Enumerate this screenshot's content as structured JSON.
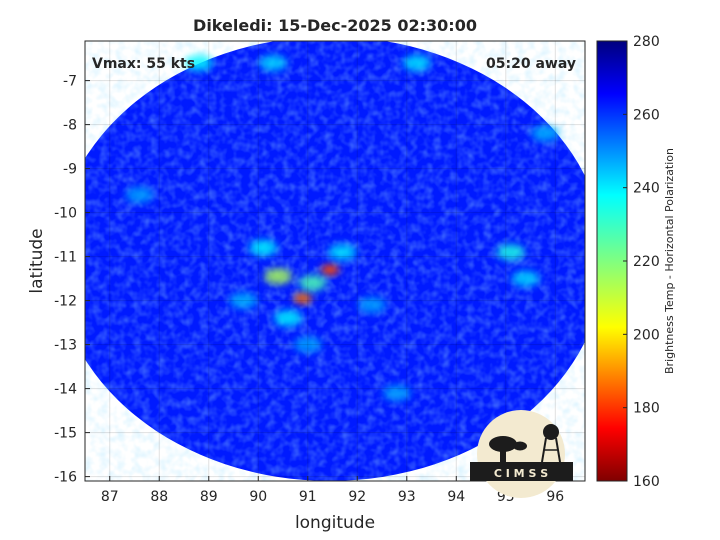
{
  "chart_data": {
    "type": "heatmap",
    "title": "Dikeledi: 15-Dec-2025 02:30:00",
    "xlabel": "longitude",
    "ylabel": "latitude",
    "xlim": [
      86.5,
      96.6
    ],
    "ylim": [
      -16.1,
      -6.1
    ],
    "x_ticks": [
      87,
      88,
      89,
      90,
      91,
      92,
      93,
      94,
      95,
      96
    ],
    "y_ticks": [
      -7,
      -8,
      -9,
      -10,
      -11,
      -12,
      -13,
      -14,
      -15,
      -16
    ],
    "grid": true,
    "annotations": {
      "vmax": "Vmax: 55 kts",
      "away": "05:20 away"
    },
    "swath": {
      "center_lon": 91.45,
      "center_lat": -11.05,
      "radius_lon": 5.55,
      "radius_lat": 5.05
    },
    "background_value": 262,
    "features": [
      {
        "lon": 90.9,
        "lat": -11.95,
        "value": 188
      },
      {
        "lon": 91.45,
        "lat": -11.3,
        "value": 184
      },
      {
        "lon": 90.4,
        "lat": -11.45,
        "value": 215
      },
      {
        "lon": 91.1,
        "lat": -11.6,
        "value": 226
      },
      {
        "lon": 90.1,
        "lat": -10.8,
        "value": 236
      },
      {
        "lon": 91.7,
        "lat": -10.9,
        "value": 238
      },
      {
        "lon": 90.6,
        "lat": -12.4,
        "value": 236
      },
      {
        "lon": 89.7,
        "lat": -12.0,
        "value": 244
      },
      {
        "lon": 92.3,
        "lat": -12.1,
        "value": 246
      },
      {
        "lon": 91.0,
        "lat": -13.0,
        "value": 246
      },
      {
        "lon": 95.1,
        "lat": -10.9,
        "value": 232
      },
      {
        "lon": 95.4,
        "lat": -11.5,
        "value": 240
      },
      {
        "lon": 88.8,
        "lat": -6.6,
        "value": 236
      },
      {
        "lon": 90.3,
        "lat": -6.6,
        "value": 240
      },
      {
        "lon": 93.2,
        "lat": -6.6,
        "value": 238
      },
      {
        "lon": 92.8,
        "lat": -14.1,
        "value": 246
      },
      {
        "lon": 87.6,
        "lat": -9.6,
        "value": 246
      },
      {
        "lon": 95.8,
        "lat": -8.2,
        "value": 244
      }
    ],
    "colorbar": {
      "label": "Brightness Temp - Horizontal Polarization",
      "range": [
        160,
        280
      ],
      "ticks": [
        160,
        180,
        200,
        220,
        240,
        260,
        280
      ],
      "colormap": "jet"
    }
  },
  "logo": {
    "text": "C I M S S",
    "colors": {
      "circle": "#f3ead0",
      "ink": "#1c1c1c"
    }
  }
}
